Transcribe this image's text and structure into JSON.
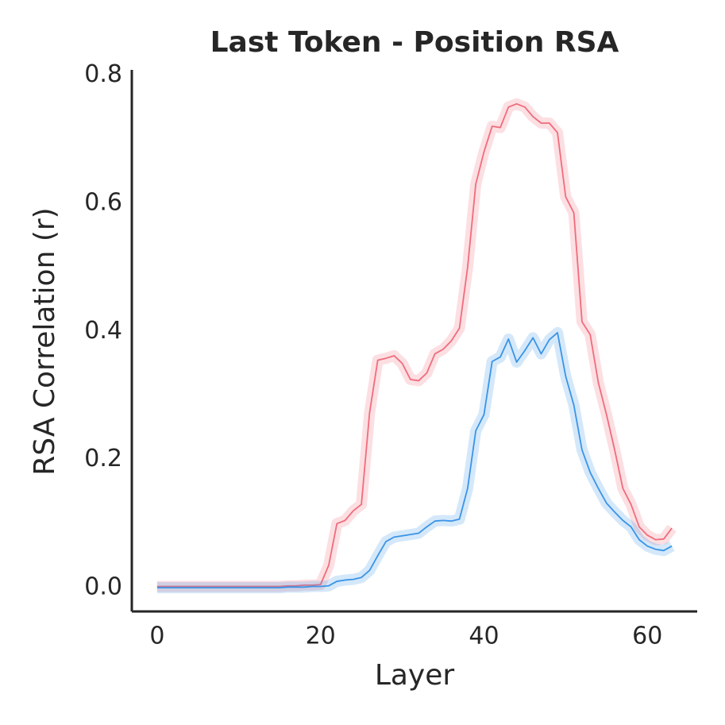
{
  "chart_data": {
    "type": "line",
    "title": "Last Token - Position RSA",
    "xlabel": "Layer",
    "ylabel": "RSA Correlation (r)",
    "x": [
      0,
      1,
      2,
      3,
      4,
      5,
      6,
      7,
      8,
      9,
      10,
      11,
      12,
      13,
      14,
      15,
      16,
      17,
      18,
      19,
      20,
      21,
      22,
      23,
      24,
      25,
      26,
      27,
      28,
      29,
      30,
      31,
      32,
      33,
      34,
      35,
      36,
      37,
      38,
      39,
      40,
      41,
      42,
      43,
      44,
      45,
      46,
      47,
      48,
      49,
      50,
      51,
      52,
      53,
      54,
      55,
      56,
      57,
      58,
      59,
      60,
      61,
      62,
      63
    ],
    "series": [
      {
        "color": "#f06c7c",
        "values": [
          0.002,
          0.002,
          0.002,
          0.002,
          0.002,
          0.002,
          0.002,
          0.002,
          0.002,
          0.002,
          0.002,
          0.002,
          0.002,
          0.002,
          0.002,
          0.002,
          0.003,
          0.003,
          0.004,
          0.004,
          0.005,
          0.035,
          0.1,
          0.105,
          0.12,
          0.13,
          0.273,
          0.355,
          0.358,
          0.362,
          0.35,
          0.325,
          0.323,
          0.335,
          0.365,
          0.372,
          0.385,
          0.405,
          0.5,
          0.63,
          0.68,
          0.72,
          0.718,
          0.75,
          0.755,
          0.75,
          0.735,
          0.725,
          0.725,
          0.71,
          0.61,
          0.585,
          0.415,
          0.395,
          0.32,
          0.27,
          0.215,
          0.155,
          0.13,
          0.095,
          0.082,
          0.075,
          0.076,
          0.093
        ]
      },
      {
        "color": "#3a94e6",
        "values": [
          0.0,
          0.0,
          0.0,
          0.0,
          0.0,
          0.0,
          0.0,
          0.0,
          0.0,
          0.0,
          0.0,
          0.0,
          0.0,
          0.0,
          0.0,
          0.0,
          0.001,
          0.001,
          0.001,
          0.002,
          0.002,
          0.003,
          0.01,
          0.012,
          0.013,
          0.016,
          0.027,
          0.05,
          0.072,
          0.079,
          0.081,
          0.083,
          0.085,
          0.095,
          0.104,
          0.105,
          0.104,
          0.107,
          0.155,
          0.245,
          0.27,
          0.353,
          0.36,
          0.388,
          0.352,
          0.37,
          0.39,
          0.365,
          0.387,
          0.398,
          0.33,
          0.285,
          0.215,
          0.18,
          0.155,
          0.132,
          0.118,
          0.105,
          0.095,
          0.075,
          0.065,
          0.06,
          0.058,
          0.065
        ]
      }
    ],
    "xlim": [
      -3.1,
      66.1
    ],
    "xticks": [
      0,
      20,
      40,
      60
    ],
    "ylim": [
      -0.037,
      0.808
    ],
    "yticks": [
      {
        "value": 0,
        "label": "0.0"
      },
      {
        "value": 0.2,
        "label": "0.2"
      },
      {
        "value": 0.4,
        "label": "0.4"
      },
      {
        "value": 0.6,
        "label": "0.6"
      },
      {
        "value": 0.8,
        "label": "0.8"
      }
    ]
  }
}
